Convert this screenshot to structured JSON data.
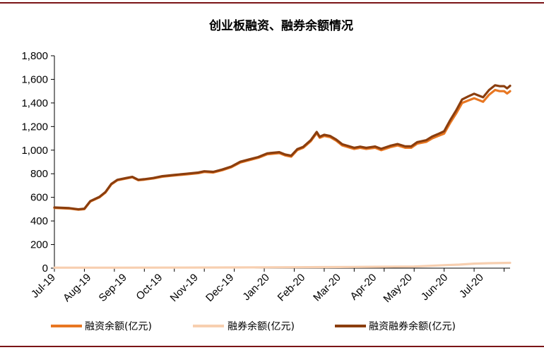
{
  "chart_data": {
    "type": "line",
    "title": "创业板融资、融券余额情况",
    "xlabel": "",
    "ylabel": "",
    "ylim": [
      0,
      1800
    ],
    "yticks": [
      "0",
      "200",
      "400",
      "600",
      "800",
      "1,000",
      "1,200",
      "1,400",
      "1,600",
      "1,800"
    ],
    "x_ticks": [
      "Jul-19",
      "Aug-19",
      "Sep-19",
      "Oct-19",
      "Nov-19",
      "Dec-19",
      "Jan-20",
      "Feb-20",
      "Mar-20",
      "Apr-20",
      "May-20",
      "Jun-20",
      "Jul-20"
    ],
    "x_range_months": [
      0,
      12.9
    ],
    "grid": false,
    "legend": "bottom",
    "series": [
      {
        "name": "融资余额(亿元)",
        "color": "#e87722",
        "points": [
          [
            0,
            510
          ],
          [
            0.5,
            505
          ],
          [
            0.8,
            495
          ],
          [
            1.0,
            500
          ],
          [
            1.2,
            565
          ],
          [
            1.5,
            600
          ],
          [
            1.7,
            640
          ],
          [
            1.9,
            710
          ],
          [
            2.1,
            745
          ],
          [
            2.4,
            760
          ],
          [
            2.6,
            770
          ],
          [
            2.8,
            745
          ],
          [
            3.0,
            750
          ],
          [
            3.3,
            760
          ],
          [
            3.6,
            775
          ],
          [
            4.0,
            785
          ],
          [
            4.4,
            795
          ],
          [
            4.8,
            805
          ],
          [
            5.0,
            815
          ],
          [
            5.3,
            810
          ],
          [
            5.6,
            830
          ],
          [
            5.9,
            855
          ],
          [
            6.2,
            895
          ],
          [
            6.5,
            915
          ],
          [
            6.8,
            935
          ],
          [
            7.1,
            965
          ],
          [
            7.5,
            975
          ],
          [
            7.7,
            955
          ],
          [
            7.9,
            945
          ],
          [
            8.1,
            1000
          ],
          [
            8.3,
            1020
          ],
          [
            8.55,
            1075
          ],
          [
            8.75,
            1145
          ],
          [
            8.85,
            1105
          ],
          [
            9.0,
            1120
          ],
          [
            9.2,
            1110
          ],
          [
            9.4,
            1080
          ],
          [
            9.6,
            1040
          ],
          [
            9.8,
            1025
          ],
          [
            10.0,
            1010
          ],
          [
            10.2,
            1020
          ],
          [
            10.4,
            1010
          ],
          [
            10.7,
            1020
          ],
          [
            10.9,
            1000
          ],
          [
            11.2,
            1025
          ],
          [
            11.45,
            1040
          ],
          [
            11.7,
            1020
          ],
          [
            11.9,
            1020
          ],
          [
            12.1,
            1055
          ],
          [
            12.4,
            1070
          ],
          [
            12.6,
            1100
          ],
          [
            12.8,
            1120
          ],
          [
            13.0,
            1140
          ],
          [
            13.2,
            1230
          ],
          [
            13.4,
            1310
          ],
          [
            13.6,
            1400
          ],
          [
            13.8,
            1420
          ],
          [
            14.0,
            1440
          ],
          [
            14.15,
            1425
          ],
          [
            14.3,
            1410
          ],
          [
            14.5,
            1470
          ],
          [
            14.7,
            1510
          ],
          [
            14.85,
            1500
          ],
          [
            15.0,
            1500
          ],
          [
            15.1,
            1480
          ],
          [
            15.2,
            1500
          ]
        ]
      },
      {
        "name": "融券余额(亿元)",
        "color": "#f7cfb0",
        "points": [
          [
            0,
            4
          ],
          [
            2,
            4
          ],
          [
            4,
            5
          ],
          [
            6,
            6
          ],
          [
            8,
            8
          ],
          [
            9,
            9
          ],
          [
            10,
            10
          ],
          [
            11,
            12
          ],
          [
            12,
            14
          ],
          [
            13,
            25
          ],
          [
            13.5,
            30
          ],
          [
            14,
            38
          ],
          [
            14.5,
            42
          ],
          [
            15.2,
            45
          ]
        ]
      },
      {
        "name": "融资融券余额(亿元)",
        "color": "#8b3e0e",
        "points": [
          [
            0,
            514
          ],
          [
            0.5,
            509
          ],
          [
            0.8,
            499
          ],
          [
            1.0,
            504
          ],
          [
            1.2,
            569
          ],
          [
            1.5,
            604
          ],
          [
            1.7,
            644
          ],
          [
            1.9,
            714
          ],
          [
            2.1,
            749
          ],
          [
            2.4,
            764
          ],
          [
            2.6,
            774
          ],
          [
            2.8,
            749
          ],
          [
            3.0,
            754
          ],
          [
            3.3,
            764
          ],
          [
            3.6,
            780
          ],
          [
            4.0,
            790
          ],
          [
            4.4,
            800
          ],
          [
            4.8,
            810
          ],
          [
            5.0,
            821
          ],
          [
            5.3,
            816
          ],
          [
            5.6,
            836
          ],
          [
            5.9,
            861
          ],
          [
            6.2,
            902
          ],
          [
            6.5,
            922
          ],
          [
            6.8,
            942
          ],
          [
            7.1,
            973
          ],
          [
            7.5,
            983
          ],
          [
            7.7,
            963
          ],
          [
            7.9,
            953
          ],
          [
            8.1,
            1008
          ],
          [
            8.3,
            1028
          ],
          [
            8.55,
            1084
          ],
          [
            8.75,
            1154
          ],
          [
            8.85,
            1114
          ],
          [
            9.0,
            1130
          ],
          [
            9.2,
            1120
          ],
          [
            9.4,
            1090
          ],
          [
            9.6,
            1050
          ],
          [
            9.8,
            1035
          ],
          [
            10.0,
            1020
          ],
          [
            10.2,
            1030
          ],
          [
            10.4,
            1020
          ],
          [
            10.7,
            1031
          ],
          [
            10.9,
            1011
          ],
          [
            11.2,
            1037
          ],
          [
            11.45,
            1052
          ],
          [
            11.7,
            1032
          ],
          [
            11.9,
            1032
          ],
          [
            12.1,
            1068
          ],
          [
            12.4,
            1084
          ],
          [
            12.6,
            1115
          ],
          [
            12.8,
            1137
          ],
          [
            13.0,
            1160
          ],
          [
            13.2,
            1253
          ],
          [
            13.4,
            1336
          ],
          [
            13.6,
            1430
          ],
          [
            13.8,
            1455
          ],
          [
            14.0,
            1478
          ],
          [
            14.15,
            1463
          ],
          [
            14.3,
            1448
          ],
          [
            14.5,
            1510
          ],
          [
            14.7,
            1550
          ],
          [
            14.85,
            1542
          ],
          [
            15.0,
            1542
          ],
          [
            15.1,
            1524
          ],
          [
            15.2,
            1545
          ]
        ]
      }
    ]
  }
}
